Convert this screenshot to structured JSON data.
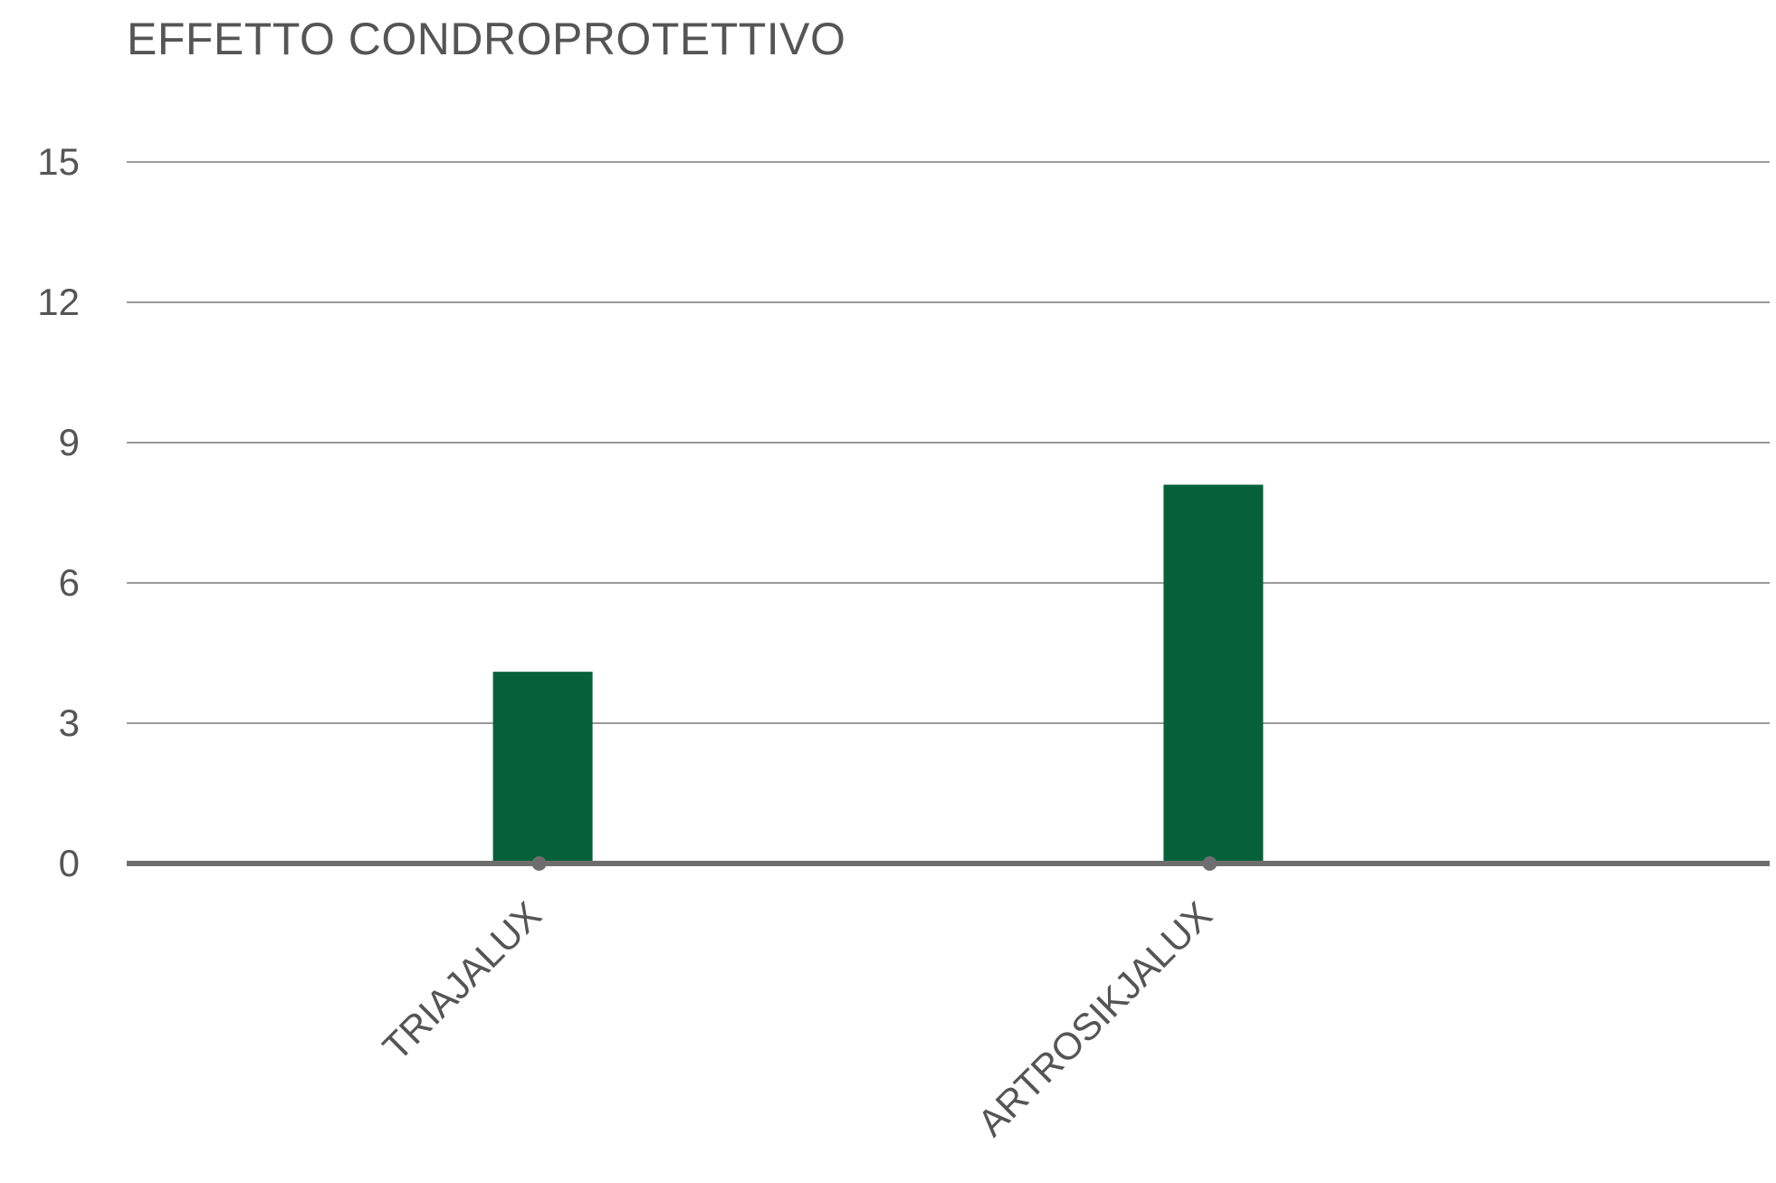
{
  "chart_data": {
    "type": "bar",
    "title": "EFFETTO CONDROPROTETTIVO",
    "categories": [
      "TRIAJALUX",
      "ARTROSIKJALUX"
    ],
    "values": [
      4.1,
      8.1
    ],
    "ylim": [
      0,
      15
    ],
    "yticks": [
      0,
      3,
      6,
      9,
      12,
      15
    ],
    "xlabel": "",
    "ylabel": "",
    "grid": true,
    "legend": "none",
    "colors": {
      "bar": "#06613a",
      "grid": "#9a9a9a",
      "axis": "#6e6e6e",
      "text": "#555555"
    }
  }
}
